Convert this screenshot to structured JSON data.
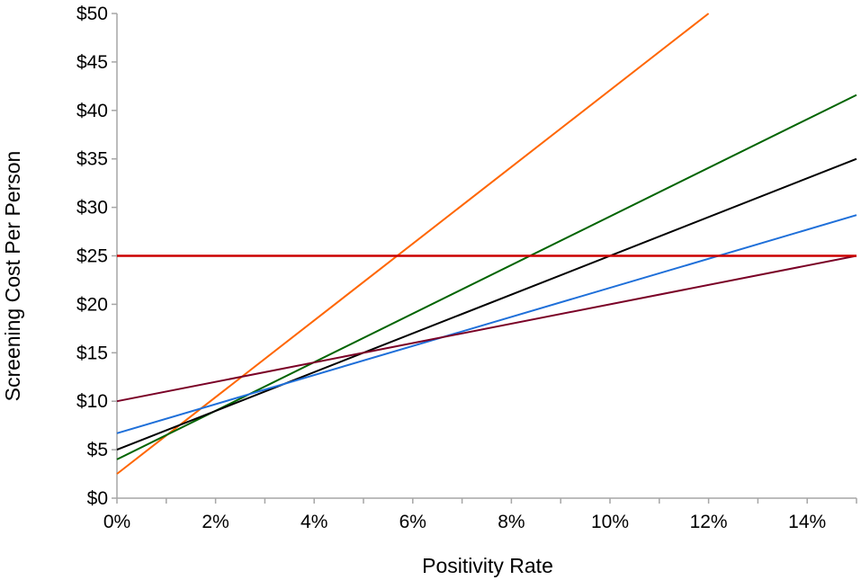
{
  "chart_data": {
    "type": "line",
    "title": "",
    "xlabel": "Positivity Rate",
    "ylabel": "Screening Cost Per Person",
    "xlim": [
      0,
      15
    ],
    "ylim": [
      0,
      50
    ],
    "x_ticks": [
      0,
      2,
      4,
      6,
      8,
      10,
      12,
      14
    ],
    "x_tick_labels": [
      "0%",
      "2%",
      "4%",
      "6%",
      "8%",
      "10%",
      "12%",
      "14%"
    ],
    "y_ticks": [
      0,
      5,
      10,
      15,
      20,
      25,
      30,
      35,
      40,
      45,
      50
    ],
    "y_tick_labels": [
      "$0",
      "$5",
      "$10",
      "$15",
      "$20",
      "$25",
      "$30",
      "$35",
      "$40",
      "$45",
      "$50"
    ],
    "grid": false,
    "legend": "none",
    "series": [
      {
        "name": "orange",
        "color": "#FF6600",
        "x": [
          0,
          12
        ],
        "y": [
          2.5,
          50
        ]
      },
      {
        "name": "green",
        "color": "#006400",
        "x": [
          0,
          15
        ],
        "y": [
          4,
          41.6
        ]
      },
      {
        "name": "black",
        "color": "#000000",
        "x": [
          0,
          0.5,
          15
        ],
        "y": [
          5,
          6,
          35
        ]
      },
      {
        "name": "blue",
        "color": "#1E6FD9",
        "x": [
          0,
          15
        ],
        "y": [
          6.7,
          29.2
        ]
      },
      {
        "name": "maroon",
        "color": "#7A0026",
        "x": [
          0,
          15
        ],
        "y": [
          10,
          25
        ]
      },
      {
        "name": "red",
        "color": "#CC0000",
        "x": [
          0,
          15
        ],
        "y": [
          25,
          25
        ]
      }
    ]
  }
}
